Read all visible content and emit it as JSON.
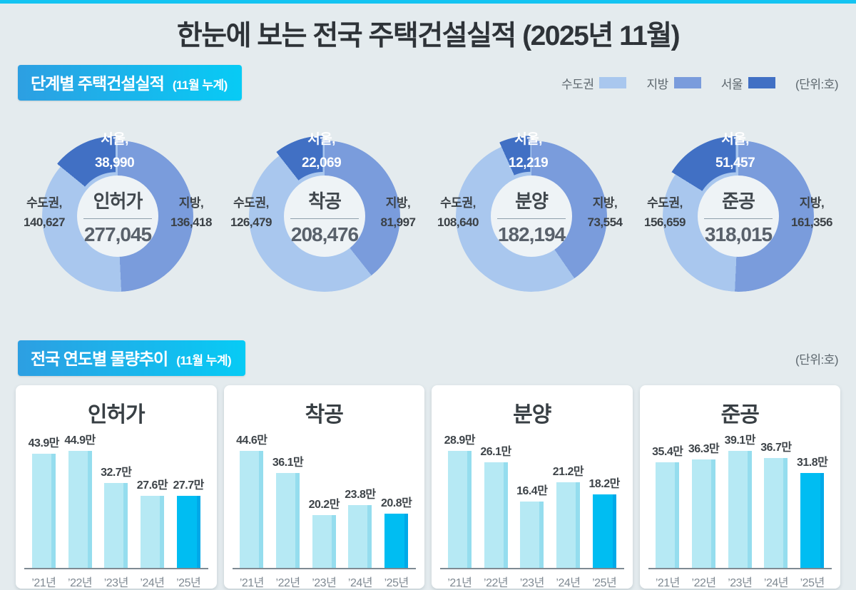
{
  "page": {
    "title": "한눈에 보는 전국 주택건설실적 (2025년 11월)"
  },
  "colors": {
    "accent_strip": "#14c4f2",
    "ribbon_from": "#2d9fe2",
    "ribbon_to": "#07cbf5",
    "capital": "#a9c7ee",
    "regional": "#7a9cdc",
    "seoul": "#4170c4",
    "bar_light": "#b6e9f4",
    "bar_highlight": "#00bdf2",
    "series": [
      "#a9c7ee",
      "#7a9cdc",
      "#4170c4"
    ]
  },
  "section1": {
    "title": "단계별 주택건설실적",
    "subtitle": "(11월 누계)",
    "legend": [
      {
        "label": "수도권"
      },
      {
        "label": "지방"
      },
      {
        "label": "서울"
      }
    ],
    "unit": "(단위:호)"
  },
  "section2": {
    "title": "전국 연도별 물량추이",
    "subtitle": "(11월 누계)",
    "unit": "(단위:호)"
  },
  "chart_data": [
    {
      "type": "donut",
      "title": "인허가",
      "total": 277045,
      "total_label": "277,045",
      "unit": "호",
      "segments": [
        {
          "name": "수도권",
          "value": 140627,
          "label_line1": "수도권,",
          "label_line2": "140,627"
        },
        {
          "name": "지방",
          "value": 136418,
          "label_line1": "지방,",
          "label_line2": "136,418"
        },
        {
          "name": "서울",
          "value": 38990,
          "label_line1": "서울,",
          "label_line2": "38,990"
        }
      ]
    },
    {
      "type": "donut",
      "title": "착공",
      "total": 208476,
      "total_label": "208,476",
      "unit": "호",
      "segments": [
        {
          "name": "수도권",
          "value": 126479,
          "label_line1": "수도권,",
          "label_line2": "126,479"
        },
        {
          "name": "지방",
          "value": 81997,
          "label_line1": "지방,",
          "label_line2": "81,997"
        },
        {
          "name": "서울",
          "value": 22069,
          "label_line1": "서울,",
          "label_line2": "22,069"
        }
      ]
    },
    {
      "type": "donut",
      "title": "분양",
      "total": 182194,
      "total_label": "182,194",
      "unit": "호",
      "segments": [
        {
          "name": "수도권",
          "value": 108640,
          "label_line1": "수도권,",
          "label_line2": "108,640"
        },
        {
          "name": "지방",
          "value": 73554,
          "label_line1": "지방,",
          "label_line2": "73,554"
        },
        {
          "name": "서울",
          "value": 12219,
          "label_line1": "서울,",
          "label_line2": "12,219"
        }
      ]
    },
    {
      "type": "donut",
      "title": "준공",
      "total": 318015,
      "total_label": "318,015",
      "unit": "호",
      "segments": [
        {
          "name": "수도권",
          "value": 156659,
          "label_line1": "수도권,",
          "label_line2": "156,659"
        },
        {
          "name": "지방",
          "value": 161356,
          "label_line1": "지방,",
          "label_line2": "161,356"
        },
        {
          "name": "서울",
          "value": 51457,
          "label_line1": "서울,",
          "label_line2": "51,457"
        }
      ]
    },
    {
      "type": "bar",
      "title": "인허가",
      "categories": [
        "’21년",
        "’22년",
        "’23년",
        "’24년",
        "’25년"
      ],
      "values": [
        43.9,
        44.9,
        32.7,
        27.6,
        27.7
      ],
      "value_labels": [
        "43.9만",
        "44.9만",
        "32.7만",
        "27.6만",
        "27.7만"
      ],
      "unit": "만",
      "highlight_index": 4,
      "ylim": [
        0,
        46
      ]
    },
    {
      "type": "bar",
      "title": "착공",
      "categories": [
        "’21년",
        "’22년",
        "’23년",
        "’24년",
        "’25년"
      ],
      "values": [
        44.6,
        36.1,
        20.2,
        23.8,
        20.8
      ],
      "value_labels": [
        "44.6만",
        "36.1만",
        "20.2만",
        "23.8만",
        "20.8만"
      ],
      "unit": "만",
      "highlight_index": 4,
      "ylim": [
        0,
        46
      ]
    },
    {
      "type": "bar",
      "title": "분양",
      "categories": [
        "’21년",
        "’22년",
        "’23년",
        "’24년",
        "’25년"
      ],
      "values": [
        28.9,
        26.1,
        16.4,
        21.2,
        18.2
      ],
      "value_labels": [
        "28.9만",
        "26.1만",
        "16.4만",
        "21.2만",
        "18.2만"
      ],
      "unit": "만",
      "highlight_index": 4,
      "ylim": [
        0,
        30
      ]
    },
    {
      "type": "bar",
      "title": "준공",
      "categories": [
        "’21년",
        "’22년",
        "’23년",
        "’24년",
        "’25년"
      ],
      "values": [
        35.4,
        36.3,
        39.1,
        36.7,
        31.8
      ],
      "value_labels": [
        "35.4만",
        "36.3만",
        "39.1만",
        "36.7만",
        "31.8만"
      ],
      "unit": "만",
      "highlight_index": 4,
      "ylim": [
        0,
        41
      ]
    }
  ]
}
